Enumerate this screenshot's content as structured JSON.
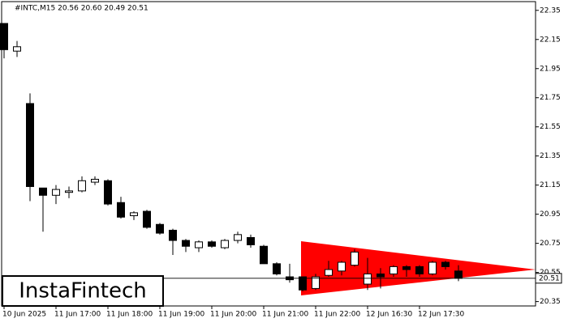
{
  "chart_data": {
    "type": "candlestick",
    "title": "#INTC,M15  20.56 20.60 20.49 20.51",
    "watermark": "InstaFintech",
    "categories": [
      "10 Jun 2025",
      null,
      null,
      null,
      "11 Jun 17:00",
      null,
      null,
      null,
      "11 Jun 18:00",
      null,
      null,
      null,
      "11 Jun 19:00",
      null,
      null,
      null,
      "11 Jun 20:00",
      null,
      null,
      null,
      "11 Jun 21:00",
      null,
      null,
      null,
      "11 Jun 22:00",
      null,
      null,
      null,
      "12 Jun 16:30",
      null,
      null,
      null,
      "12 Jun 17:30",
      null,
      null,
      null
    ],
    "open": [
      22.26,
      22.07,
      21.71,
      21.13,
      21.08,
      21.1,
      21.11,
      21.17,
      21.18,
      21.03,
      20.94,
      20.97,
      20.88,
      20.84,
      20.77,
      20.72,
      20.76,
      20.72,
      20.77,
      20.79,
      20.73,
      20.61,
      20.52,
      20.52,
      20.44,
      20.53,
      20.56,
      20.6,
      20.47,
      20.54,
      20.54,
      20.59,
      20.59,
      20.54,
      20.62,
      20.56
    ],
    "high": [
      22.26,
      22.14,
      21.78,
      21.13,
      21.15,
      21.14,
      21.21,
      21.21,
      21.19,
      21.07,
      20.97,
      20.98,
      20.89,
      20.85,
      20.78,
      20.77,
      20.77,
      20.78,
      20.83,
      20.81,
      20.74,
      20.62,
      20.61,
      20.52,
      20.54,
      20.63,
      20.63,
      20.71,
      20.65,
      20.58,
      20.6,
      20.6,
      20.6,
      20.63,
      20.63,
      20.6
    ],
    "low": [
      22.02,
      22.03,
      21.04,
      20.83,
      21.02,
      21.06,
      21.1,
      21.15,
      21.01,
      20.92,
      20.91,
      20.85,
      20.81,
      20.67,
      20.69,
      20.69,
      20.72,
      20.71,
      20.75,
      20.72,
      20.61,
      20.53,
      20.48,
      20.42,
      20.43,
      20.52,
      20.53,
      20.59,
      20.43,
      20.44,
      20.52,
      20.52,
      20.52,
      20.53,
      20.57,
      20.49
    ],
    "close": [
      22.08,
      22.1,
      21.14,
      21.08,
      21.12,
      21.11,
      21.18,
      21.19,
      21.02,
      20.93,
      20.96,
      20.86,
      20.82,
      20.77,
      20.73,
      20.76,
      20.73,
      20.77,
      20.81,
      20.74,
      20.61,
      20.54,
      20.5,
      20.43,
      20.52,
      20.57,
      20.62,
      20.69,
      20.54,
      20.52,
      20.59,
      20.57,
      20.54,
      20.62,
      20.59,
      20.51
    ],
    "up_color": "#ffffff",
    "down_color": "#000000",
    "ylim": [
      20.32,
      22.41
    ],
    "yticks": [
      22.35,
      22.15,
      21.95,
      21.75,
      21.55,
      21.35,
      21.15,
      20.95,
      20.75,
      20.55,
      20.35
    ],
    "last_price": {
      "value": 20.51,
      "label": "20.51"
    }
  }
}
